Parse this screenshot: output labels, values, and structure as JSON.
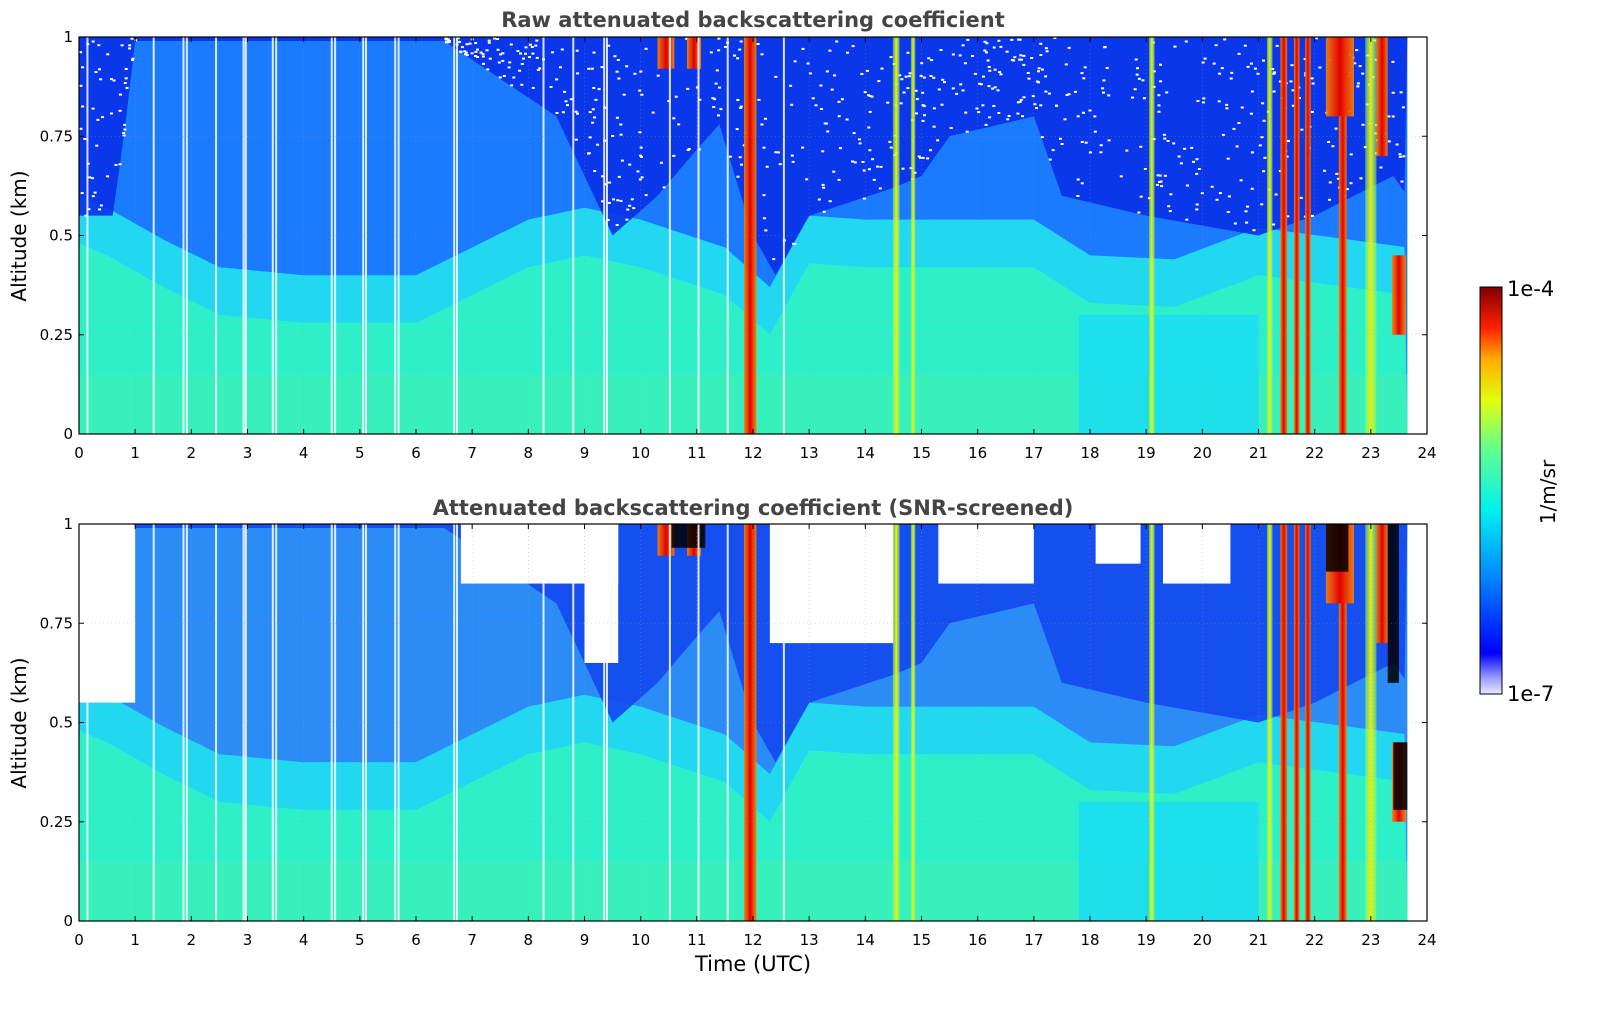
{
  "chart_data": [
    {
      "type": "heatmap",
      "title": "Raw attenuated backscattering coefficient",
      "xlabel": "",
      "ylabel": "Altitude (km)",
      "xlim": [
        0,
        24
      ],
      "ylim": [
        0,
        1
      ],
      "x_ticks": [
        "0",
        "1",
        "2",
        "3",
        "4",
        "5",
        "6",
        "7",
        "8",
        "9",
        "10",
        "11",
        "12",
        "13",
        "14",
        "15",
        "16",
        "17",
        "18",
        "19",
        "20",
        "21",
        "22",
        "23",
        "24"
      ],
      "y_ticks": [
        "0",
        "0.25",
        "0.5",
        "0.75",
        "1"
      ],
      "grid": true,
      "data_end_hour": 23.65,
      "white_gap_hours": [
        0.15,
        1.33,
        1.86,
        1.92,
        2.44,
        2.93,
        2.97,
        3.45,
        3.51,
        4.5,
        4.56,
        5.06,
        5.11,
        5.63,
        5.69,
        6.68,
        6.73,
        8.27,
        8.8,
        9.35,
        9.4,
        10.52,
        11.03,
        11.55,
        12.55
      ],
      "noise_top_floor": [
        [
          0,
          0.55
        ],
        [
          0.6,
          0.55
        ],
        [
          0.8,
          0.75
        ],
        [
          1.0,
          0.99
        ],
        [
          6.5,
          0.99
        ],
        [
          8.5,
          0.8
        ],
        [
          9.5,
          0.5
        ],
        [
          10.3,
          0.6
        ],
        [
          10.9,
          0.7
        ],
        [
          11.4,
          0.78
        ],
        [
          12.0,
          0.5
        ],
        [
          12.4,
          0.4
        ],
        [
          13.0,
          0.55
        ],
        [
          14.5,
          0.62
        ],
        [
          15.0,
          0.65
        ],
        [
          15.5,
          0.75
        ],
        [
          17.0,
          0.8
        ],
        [
          17.5,
          0.6
        ],
        [
          19.0,
          0.55
        ],
        [
          21.0,
          0.5
        ],
        [
          22.0,
          0.55
        ],
        [
          23.4,
          0.65
        ],
        [
          23.65,
          0.6
        ]
      ],
      "boundary_layer_top": [
        [
          0,
          0.48
        ],
        [
          0.5,
          0.45
        ],
        [
          1.5,
          0.37
        ],
        [
          2.5,
          0.3
        ],
        [
          4,
          0.28
        ],
        [
          6,
          0.28
        ],
        [
          7,
          0.35
        ],
        [
          8,
          0.42
        ],
        [
          9,
          0.45
        ],
        [
          10,
          0.42
        ],
        [
          11.5,
          0.35
        ],
        [
          12.3,
          0.25
        ],
        [
          13,
          0.43
        ],
        [
          14,
          0.42
        ],
        [
          15.5,
          0.42
        ],
        [
          17,
          0.42
        ],
        [
          18,
          0.33
        ],
        [
          19.5,
          0.32
        ],
        [
          21,
          0.4
        ],
        [
          23.65,
          0.35
        ]
      ],
      "strong_layers": [
        {
          "hour": 11.95,
          "width": 0.22,
          "bottom": 0.0,
          "top": 1.0,
          "level": "high"
        },
        {
          "hour": 21.45,
          "width": 0.12,
          "bottom": 0.0,
          "top": 1.0,
          "level": "high"
        },
        {
          "hour": 21.68,
          "width": 0.1,
          "bottom": 0.0,
          "top": 1.0,
          "level": "high"
        },
        {
          "hour": 21.88,
          "width": 0.1,
          "bottom": 0.0,
          "top": 1.0,
          "level": "high"
        },
        {
          "hour": 22.5,
          "width": 0.14,
          "bottom": 0.0,
          "top": 1.0,
          "level": "high"
        },
        {
          "hour": 10.45,
          "width": 0.3,
          "bottom": 0.92,
          "top": 1.0,
          "level": "high"
        },
        {
          "hour": 10.95,
          "width": 0.25,
          "bottom": 0.92,
          "top": 1.0,
          "level": "high"
        },
        {
          "hour": 22.45,
          "width": 0.5,
          "bottom": 0.8,
          "top": 1.0,
          "level": "high"
        },
        {
          "hour": 23.2,
          "width": 0.2,
          "bottom": 0.7,
          "top": 1.0,
          "level": "high"
        },
        {
          "hour": 23.5,
          "width": 0.25,
          "bottom": 0.25,
          "top": 0.45,
          "level": "high"
        },
        {
          "hour": 14.55,
          "width": 0.12,
          "bottom": 0.0,
          "top": 1.0,
          "level": "medium"
        },
        {
          "hour": 14.85,
          "width": 0.08,
          "bottom": 0.0,
          "top": 1.0,
          "level": "medium"
        },
        {
          "hour": 19.1,
          "width": 0.1,
          "bottom": 0.0,
          "top": 1.0,
          "level": "medium"
        },
        {
          "hour": 21.2,
          "width": 0.1,
          "bottom": 0.0,
          "top": 1.0,
          "level": "medium"
        },
        {
          "hour": 23.0,
          "width": 0.2,
          "bottom": 0.0,
          "top": 1.0,
          "level": "medium"
        }
      ]
    },
    {
      "type": "heatmap",
      "title": "Attenuated backscattering coefficient (SNR-screened)",
      "xlabel": "Time (UTC)",
      "ylabel": "Altitude (km)",
      "xlim": [
        0,
        24
      ],
      "ylim": [
        0,
        1
      ],
      "x_ticks": [
        "0",
        "1",
        "2",
        "3",
        "4",
        "5",
        "6",
        "7",
        "8",
        "9",
        "10",
        "11",
        "12",
        "13",
        "14",
        "15",
        "16",
        "17",
        "18",
        "19",
        "20",
        "21",
        "22",
        "23",
        "24"
      ],
      "y_ticks": [
        "0",
        "0.25",
        "0.5",
        "0.75",
        "1"
      ],
      "grid": true,
      "data_end_hour": 23.65,
      "screened_regions": [
        {
          "x0": 0.0,
          "x1": 1.0,
          "y0": 0.55,
          "y1": 1.0
        },
        {
          "x0": 6.8,
          "x1": 9.6,
          "y0": 0.85,
          "y1": 1.0
        },
        {
          "x0": 9.0,
          "x1": 9.6,
          "y0": 0.65,
          "y1": 1.0
        },
        {
          "x0": 12.3,
          "x1": 14.5,
          "y0": 0.7,
          "y1": 1.0
        },
        {
          "x0": 15.3,
          "x1": 17.0,
          "y0": 0.85,
          "y1": 1.0
        },
        {
          "x0": 18.1,
          "x1": 18.9,
          "y0": 0.9,
          "y1": 1.0
        },
        {
          "x0": 19.3,
          "x1": 20.5,
          "y0": 0.85,
          "y1": 1.0
        },
        {
          "x0": 23.7,
          "x1": 24.0,
          "y0": 0.0,
          "y1": 1.0
        }
      ],
      "saturated_regions": [
        {
          "x0": 10.55,
          "x1": 11.15,
          "y0": 0.94,
          "y1": 1.0
        },
        {
          "x0": 22.2,
          "x1": 22.6,
          "y0": 0.88,
          "y1": 1.0
        },
        {
          "x0": 23.3,
          "x1": 23.5,
          "y0": 0.6,
          "y1": 1.0
        },
        {
          "x0": 23.4,
          "x1": 23.65,
          "y0": 0.28,
          "y1": 0.45
        }
      ]
    }
  ],
  "colorbar": {
    "label": "1/m/sr",
    "max_label": "1e-4",
    "min_label": "1e-7",
    "scale": "log",
    "colormap": "jet"
  }
}
